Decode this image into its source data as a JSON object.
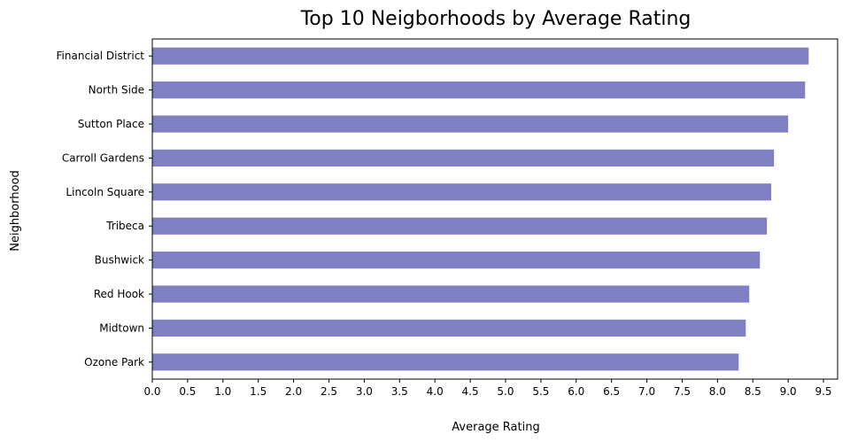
{
  "chart_data": {
    "type": "bar",
    "orientation": "horizontal",
    "title": "Top 10 Neigborhoods by Average Rating",
    "xlabel": "Average Rating",
    "ylabel": "Neighborhood",
    "categories": [
      "Financial District",
      "North Side",
      "Sutton Place",
      "Carroll Gardens",
      "Lincoln Square",
      "Tribeca",
      "Bushwick",
      "Red Hook",
      "Midtown",
      "Ozone Park"
    ],
    "values": [
      9.29,
      9.24,
      9.0,
      8.8,
      8.76,
      8.7,
      8.6,
      8.45,
      8.4,
      8.3
    ],
    "xlim": [
      0,
      9.7
    ],
    "xticks": [
      "0.0",
      "0.5",
      "1.0",
      "1.5",
      "2.0",
      "2.5",
      "3.0",
      "3.5",
      "4.0",
      "4.5",
      "5.0",
      "5.5",
      "6.0",
      "6.5",
      "7.0",
      "7.5",
      "8.0",
      "8.5",
      "9.0",
      "9.5"
    ],
    "bar_color": "#7f7fc4",
    "grid": false,
    "legend": false
  }
}
